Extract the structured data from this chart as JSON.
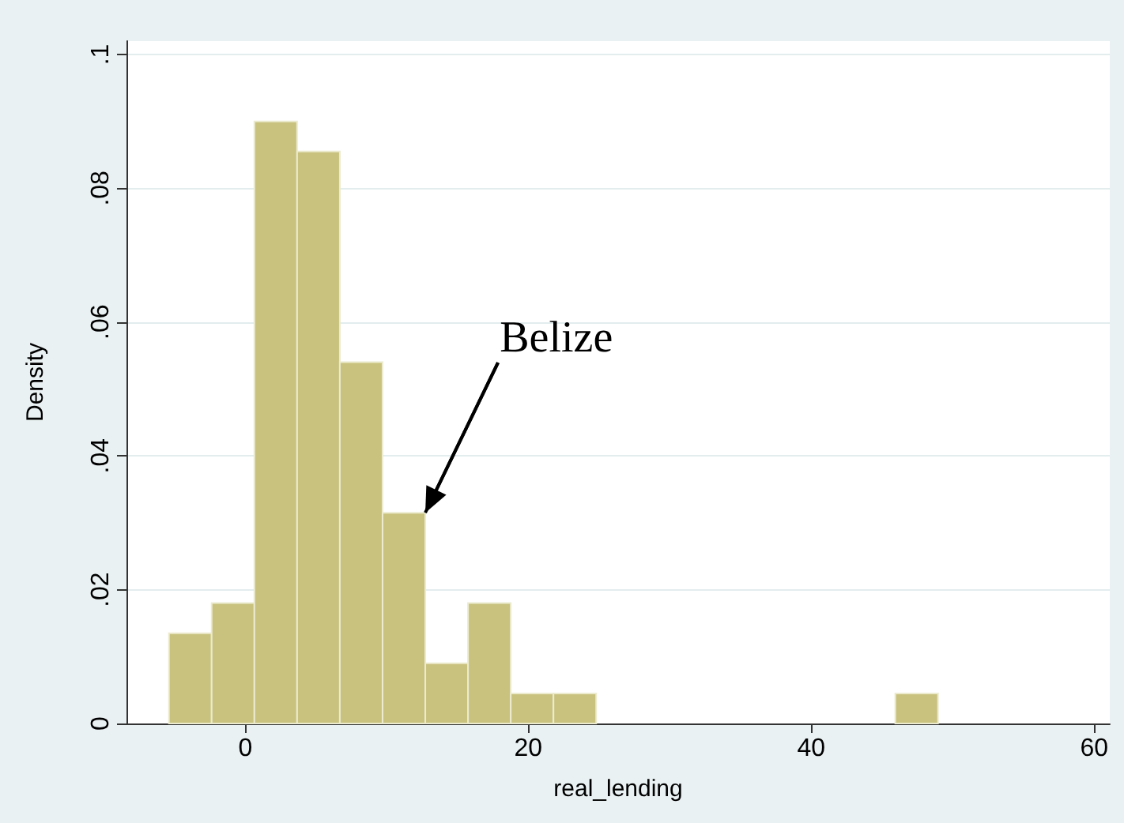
{
  "chart_data": {
    "type": "histogram",
    "xlabel": "real_lending",
    "ylabel": "Density",
    "color": "#c9c27e",
    "bins": [
      -5.4,
      -2.38,
      0.64,
      3.66,
      6.68,
      9.7,
      12.72,
      15.74,
      18.76,
      21.78,
      24.8,
      27.82,
      30.84,
      33.86,
      36.88,
      39.9,
      42.92,
      45.94,
      48.96
    ],
    "values": [
      0.0135,
      0.018,
      0.09,
      0.0855,
      0.054,
      0.0315,
      0.009,
      0.018,
      0.0045,
      0.0045,
      0,
      0,
      0,
      0,
      0,
      0,
      0,
      0.0045
    ],
    "xlim": [
      -8.4,
      61.1
    ],
    "xticks": [
      0,
      20,
      40,
      60
    ],
    "ylim": [
      0,
      0.102
    ],
    "yticks": [
      {
        "value": 0,
        "label": "0"
      },
      {
        "value": 0.02,
        "label": ".02"
      },
      {
        "value": 0.04,
        "label": ".04"
      },
      {
        "value": 0.06,
        "label": ".06"
      },
      {
        "value": 0.08,
        "label": ".08"
      },
      {
        "value": 0.1,
        "label": ".1"
      }
    ],
    "grid": "y",
    "annotations": [
      {
        "text": "Belize",
        "x": 12.72,
        "y": 0.0315
      }
    ]
  }
}
